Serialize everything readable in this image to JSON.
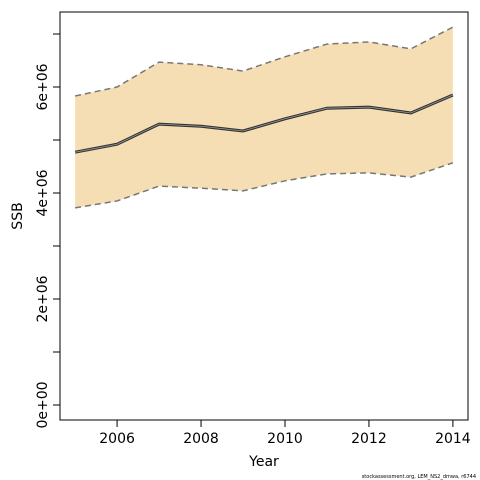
{
  "chart_data": {
    "type": "band-line",
    "xlabel": "Year",
    "ylabel": "SSB",
    "footnote": "stockassessment.org, LEM_NS2_dmwa, r6744",
    "x": [
      2005,
      2006,
      2007,
      2008,
      2009,
      2010,
      2011,
      2012,
      2013,
      2014
    ],
    "values": [
      4770000,
      4920000,
      5300000,
      5260000,
      5170000,
      5400000,
      5600000,
      5620000,
      5510000,
      5850000
    ],
    "upper": [
      5830000,
      6000000,
      6470000,
      6420000,
      6300000,
      6570000,
      6810000,
      6850000,
      6720000,
      7130000
    ],
    "lower": [
      3720000,
      3850000,
      4130000,
      4090000,
      4040000,
      4230000,
      4360000,
      4380000,
      4300000,
      4570000
    ],
    "color": "#333333",
    "band_color": "#f5deb3",
    "bound_color": "#777777",
    "xlim": [
      2004.64,
      2014.36
    ],
    "xticks": [
      2006,
      2008,
      2010,
      2012,
      2014
    ],
    "ylim": [
      -283000,
      7415000
    ],
    "yticks": [
      {
        "value": 0,
        "label": "0e+00"
      },
      {
        "value": 1000000,
        "label": null
      },
      {
        "value": 2000000,
        "label": "2e+06"
      },
      {
        "value": 3000000,
        "label": null
      },
      {
        "value": 4000000,
        "label": "4e+06"
      },
      {
        "value": 5000000,
        "label": null
      },
      {
        "value": 6000000,
        "label": "6e+06"
      },
      {
        "value": 7000000,
        "label": null
      }
    ]
  }
}
